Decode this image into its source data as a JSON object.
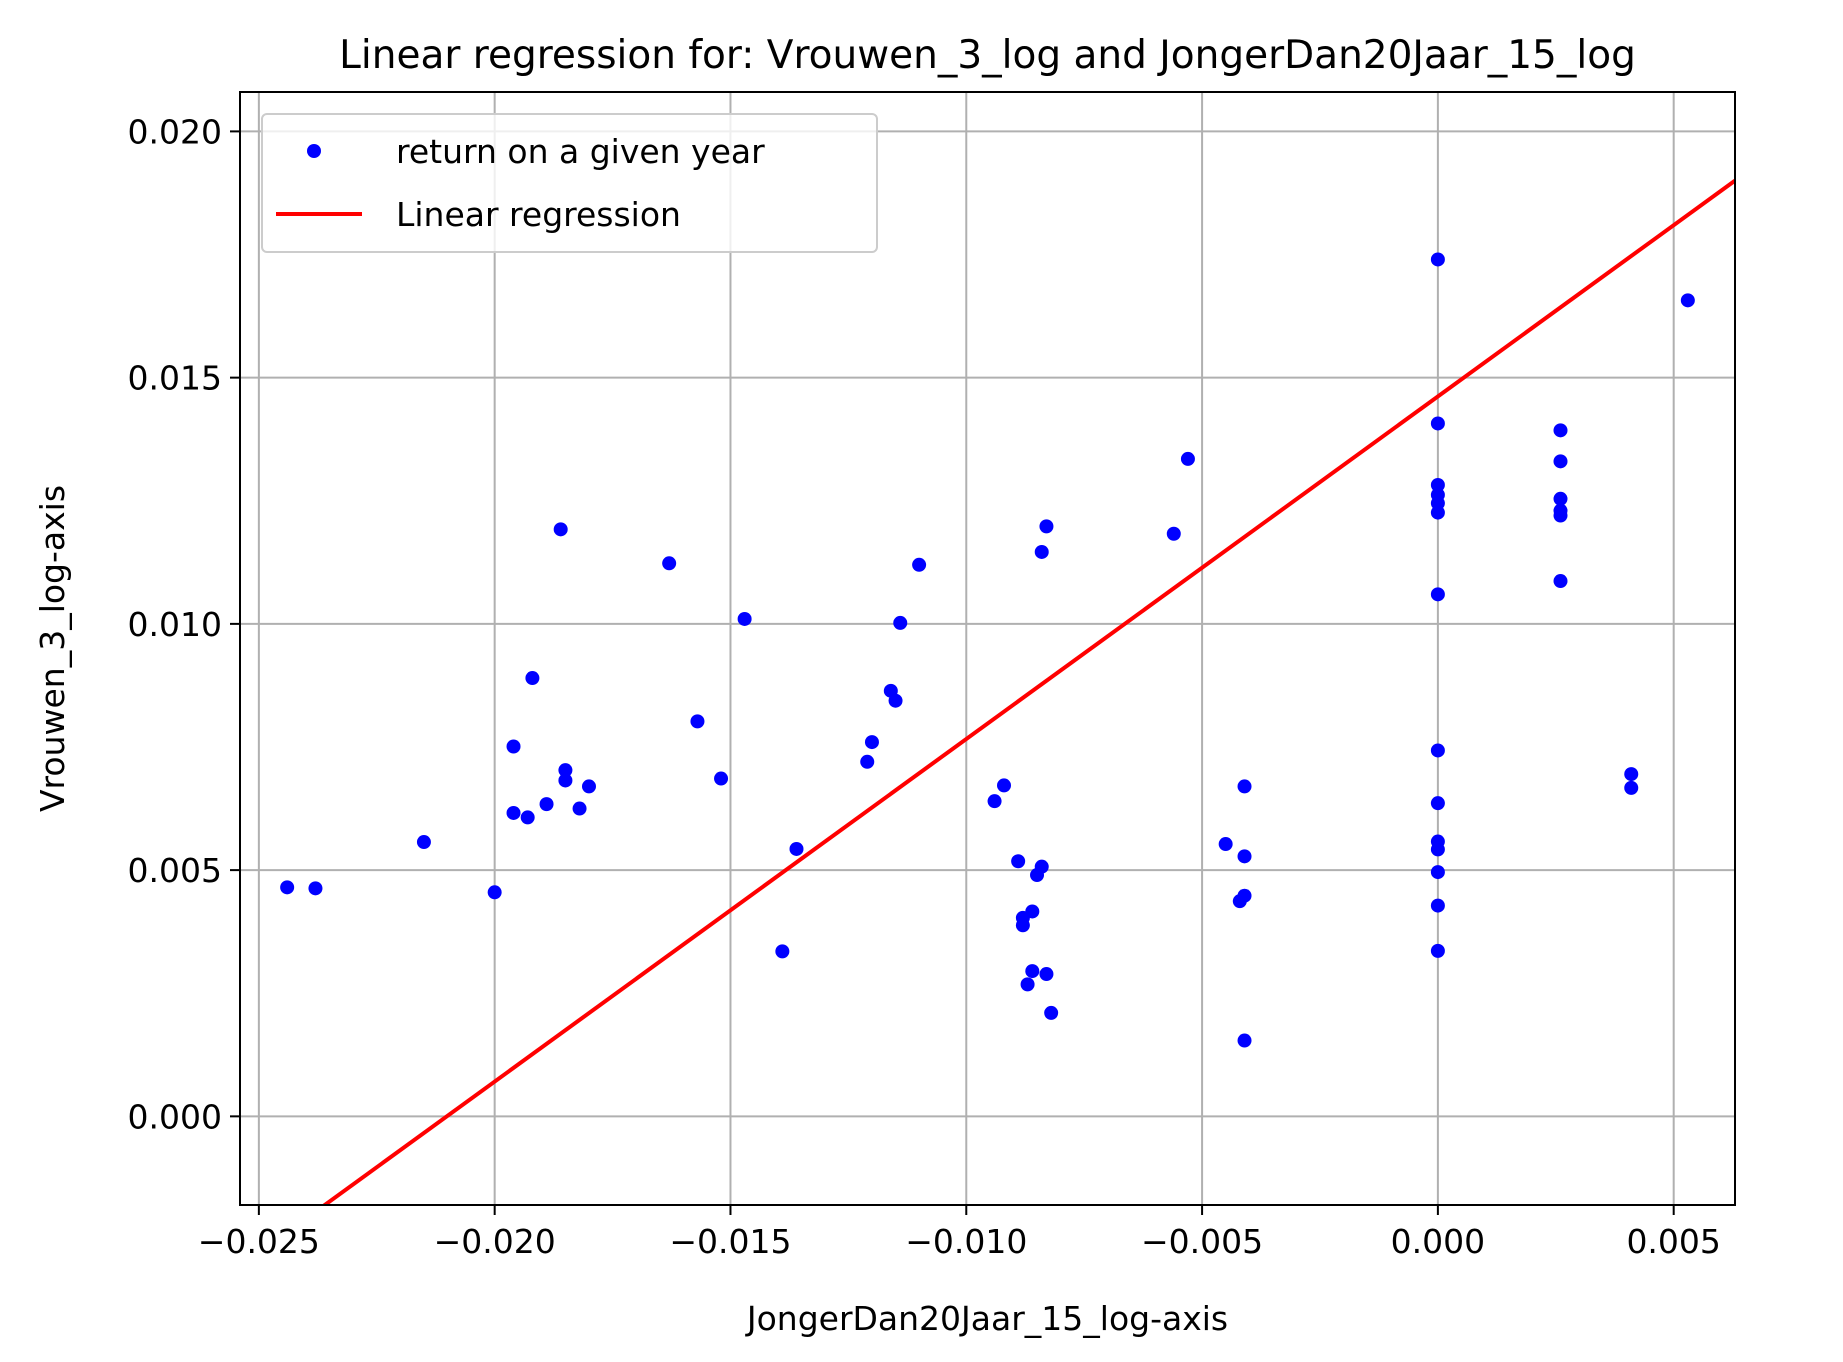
{
  "chart_data": {
    "type": "scatter",
    "title": "Linear regression for: Vrouwen_3_log and JongerDan20Jaar_15_log",
    "xlabel": "JongerDan20Jaar_15_log-axis",
    "ylabel": "Vrouwen_3_log-axis",
    "xlim": [
      -0.0254,
      0.0063
    ],
    "ylim": [
      -0.0018,
      0.0208
    ],
    "xticks": [
      "−0.025",
      "−0.020",
      "−0.015",
      "−0.010",
      "−0.005",
      "0.000",
      "0.005"
    ],
    "xtick_values": [
      -0.025,
      -0.02,
      -0.015,
      -0.01,
      -0.005,
      0.0,
      0.005
    ],
    "yticks": [
      "0.000",
      "0.005",
      "0.010",
      "0.015",
      "0.020"
    ],
    "ytick_values": [
      0.0,
      0.005,
      0.01,
      0.015,
      0.02
    ],
    "grid": true,
    "legend_position": "top-left",
    "series": [
      {
        "name": "return on a given year",
        "kind": "scatter",
        "color": "#0000ff",
        "points": [
          [
            -0.0244,
            0.00465
          ],
          [
            -0.0238,
            0.00463
          ],
          [
            -0.0215,
            0.00557
          ],
          [
            -0.02,
            0.00455
          ],
          [
            -0.0196,
            0.00751
          ],
          [
            -0.0196,
            0.00616
          ],
          [
            -0.0193,
            0.00607
          ],
          [
            -0.0192,
            0.0089
          ],
          [
            -0.0189,
            0.00634
          ],
          [
            -0.0186,
            0.01192
          ],
          [
            -0.0185,
            0.00703
          ],
          [
            -0.0185,
            0.00682
          ],
          [
            -0.0182,
            0.00625
          ],
          [
            -0.018,
            0.0067
          ],
          [
            -0.0163,
            0.01123
          ],
          [
            -0.0157,
            0.00802
          ],
          [
            -0.0152,
            0.00686
          ],
          [
            -0.0147,
            0.0101
          ],
          [
            -0.0139,
            0.00335
          ],
          [
            -0.0136,
            0.00543
          ],
          [
            -0.0121,
            0.0072
          ],
          [
            -0.012,
            0.0076
          ],
          [
            -0.0116,
            0.00864
          ],
          [
            -0.0115,
            0.00844
          ],
          [
            -0.0114,
            0.01002
          ],
          [
            -0.011,
            0.0112
          ],
          [
            -0.0094,
            0.0064
          ],
          [
            -0.0092,
            0.00672
          ],
          [
            -0.0089,
            0.00518
          ],
          [
            -0.0088,
            0.00403
          ],
          [
            -0.0088,
            0.00388
          ],
          [
            -0.0087,
            0.00268
          ],
          [
            -0.0086,
            0.00295
          ],
          [
            -0.0086,
            0.00416
          ],
          [
            -0.0085,
            0.0049
          ],
          [
            -0.0084,
            0.01146
          ],
          [
            -0.0084,
            0.00507
          ],
          [
            -0.0083,
            0.01198
          ],
          [
            -0.0083,
            0.00289
          ],
          [
            -0.0082,
            0.0021
          ],
          [
            -0.0056,
            0.01183
          ],
          [
            -0.0053,
            0.01335
          ],
          [
            -0.0045,
            0.00553
          ],
          [
            -0.0042,
            0.00437
          ],
          [
            -0.0041,
            0.00448
          ],
          [
            -0.0041,
            0.00528
          ],
          [
            -0.0041,
            0.00154
          ],
          [
            -0.0041,
            0.0067
          ],
          [
            0.0,
            0.0174
          ],
          [
            0.0,
            0.01407
          ],
          [
            0.0,
            0.01282
          ],
          [
            0.0,
            0.01262
          ],
          [
            0.0,
            0.01245
          ],
          [
            0.0,
            0.01226
          ],
          [
            0.0,
            0.0106
          ],
          [
            0.0,
            0.00743
          ],
          [
            0.0,
            0.00636
          ],
          [
            0.0,
            0.00558
          ],
          [
            0.0,
            0.00542
          ],
          [
            0.0,
            0.00496
          ],
          [
            0.0,
            0.00428
          ],
          [
            0.0,
            0.00336
          ],
          [
            0.0026,
            0.01393
          ],
          [
            0.0026,
            0.0133
          ],
          [
            0.0026,
            0.01254
          ],
          [
            0.0026,
            0.0123
          ],
          [
            0.0026,
            0.0122
          ],
          [
            0.0026,
            0.01087
          ],
          [
            0.0041,
            0.00695
          ],
          [
            0.0041,
            0.00667
          ],
          [
            0.0053,
            0.01657
          ]
        ]
      },
      {
        "name": "Linear regression",
        "kind": "line",
        "color": "#ff0000",
        "x": [
          -0.0254,
          0.0063
        ],
        "y": [
          -0.00305,
          0.019
        ]
      }
    ]
  }
}
